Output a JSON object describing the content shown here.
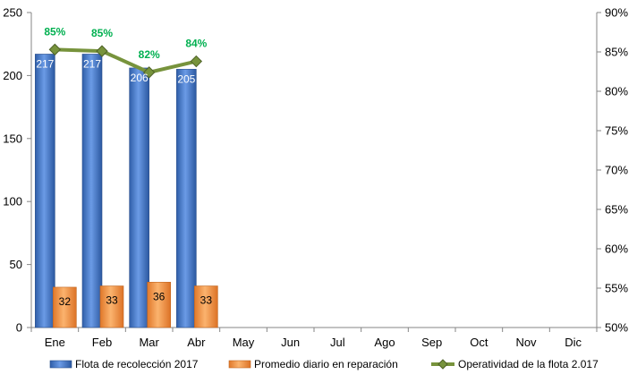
{
  "chart_data": {
    "type": "bar",
    "categories": [
      "Ene",
      "Feb",
      "Mar",
      "Abr",
      "May",
      "Jun",
      "Jul",
      "Ago",
      "Sep",
      "Oct",
      "Nov",
      "Dic"
    ],
    "series": [
      {
        "name": "Flota de recolección 2017",
        "kind": "bar",
        "axis": "left",
        "color": "#3f73c8",
        "values": [
          217,
          217,
          206,
          205,
          null,
          null,
          null,
          null,
          null,
          null,
          null,
          null
        ],
        "labels": [
          "217",
          "217",
          "206",
          "205"
        ]
      },
      {
        "name": "Promedio diario en reparación",
        "kind": "bar",
        "axis": "left",
        "color": "#f79646",
        "values": [
          32,
          33,
          36,
          33,
          null,
          null,
          null,
          null,
          null,
          null,
          null,
          null
        ],
        "labels": [
          "32",
          "33",
          "36",
          "33"
        ]
      },
      {
        "name": "Operatividad de la flota 2.017",
        "kind": "line",
        "axis": "right",
        "color": "#77933c",
        "label_color": "#00b050",
        "values": [
          0.853,
          0.851,
          0.824,
          0.838,
          null,
          null,
          null,
          null,
          null,
          null,
          null,
          null
        ],
        "labels": [
          "85%",
          "85%",
          "82%",
          "84%"
        ]
      }
    ],
    "y_left": {
      "ylim": [
        0,
        250
      ],
      "ticks": [
        "0",
        "50",
        "100",
        "150",
        "200",
        "250"
      ]
    },
    "y_right": {
      "ylim": [
        0.5,
        0.9
      ],
      "ticks": [
        "50%",
        "55%",
        "60%",
        "65%",
        "70%",
        "75%",
        "80%",
        "85%",
        "90%"
      ]
    },
    "grid": false,
    "legend": "bottom",
    "title": "",
    "xlabel": "",
    "ylabel": ""
  }
}
